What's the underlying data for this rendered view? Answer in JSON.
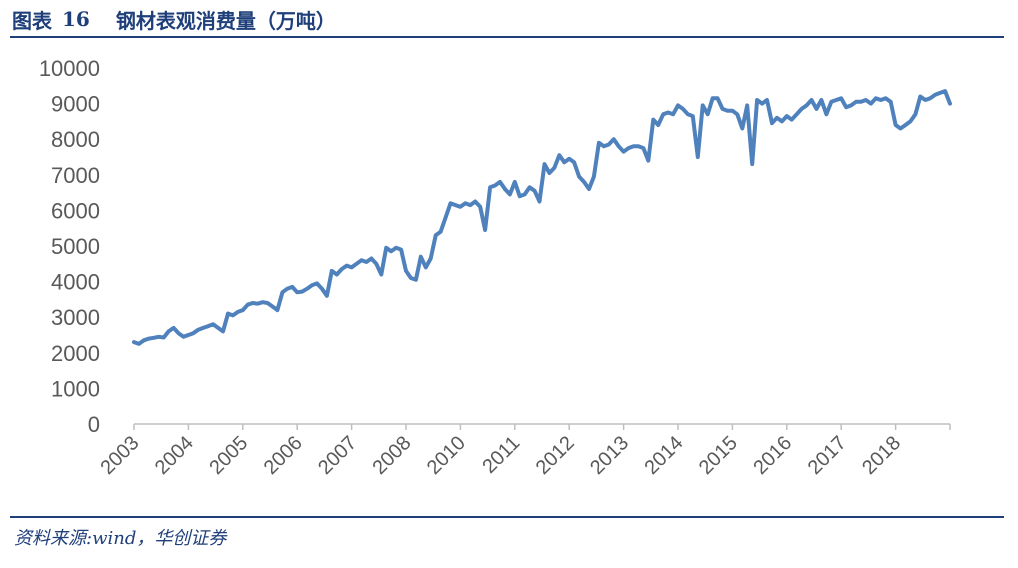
{
  "header": {
    "figure_label": "图表",
    "figure_number": "16",
    "title": "钢材表观消费量（万吨）"
  },
  "footer": {
    "source": "资料来源:wind，华创证券"
  },
  "colors": {
    "line": "#4f81bd",
    "rule": "#1f3f7a",
    "axis": "#bfbfbf",
    "text": "#595959"
  },
  "chart_data": {
    "type": "line",
    "title": "钢材表观消费量（万吨）",
    "xlabel": "",
    "ylabel": "",
    "ylim": [
      0,
      10000
    ],
    "yticks": [
      "0",
      "1000",
      "2000",
      "3000",
      "4000",
      "5000",
      "6000",
      "7000",
      "8000",
      "9000",
      "10000"
    ],
    "xticks": [
      "2003",
      "2004",
      "2005",
      "2006",
      "2007",
      "2008",
      "2010",
      "2011",
      "2012",
      "2013",
      "2014",
      "2015",
      "2016",
      "2017",
      "2018"
    ],
    "grid": false,
    "legend": "none",
    "series": [
      {
        "values": [
          2300,
          2250,
          2350,
          2400,
          2420,
          2450,
          2430,
          2600,
          2700,
          2550,
          2450,
          2500,
          2550,
          2650,
          2700,
          2750,
          2800,
          2700,
          2600,
          3100,
          3050,
          3150,
          3200,
          3350,
          3400,
          3380,
          3420,
          3400,
          3300,
          3200,
          3700,
          3800,
          3850,
          3700,
          3720,
          3800,
          3900,
          3950,
          3800,
          3600,
          4300,
          4200,
          4350,
          4450,
          4400,
          4500,
          4600,
          4550,
          4650,
          4500,
          4200,
          4950,
          4850,
          4950,
          4900,
          4300,
          4100,
          4050,
          4700,
          4400,
          4650,
          5300,
          5400,
          5800,
          6200,
          6150,
          6100,
          6200,
          6150,
          6250,
          6100,
          5450,
          6650,
          6700,
          6800,
          6600,
          6450,
          6800,
          6400,
          6450,
          6650,
          6550,
          6250,
          7300,
          7050,
          7200,
          7550,
          7350,
          7450,
          7350,
          6950,
          6800,
          6600,
          6950,
          7900,
          7800,
          7850,
          8000,
          7800,
          7650,
          7750,
          7800,
          7800,
          7750,
          7400,
          8550,
          8400,
          8700,
          8750,
          8700,
          8950,
          8850,
          8700,
          8650,
          7500,
          8950,
          8700,
          9150,
          9150,
          8850,
          8800,
          8800,
          8700,
          8300,
          8950,
          7300,
          9100,
          9000,
          9100,
          8450,
          8600,
          8500,
          8650,
          8550,
          8700,
          8850,
          8950,
          9100,
          8850,
          9100,
          8700,
          9050,
          9100,
          9150,
          8900,
          8950,
          9050,
          9050,
          9100,
          9000,
          9150,
          9100,
          9150,
          9050,
          8400,
          8300,
          8400,
          8500,
          8700,
          9200,
          9100,
          9150,
          9250,
          9300,
          9350,
          9000
        ]
      }
    ]
  }
}
